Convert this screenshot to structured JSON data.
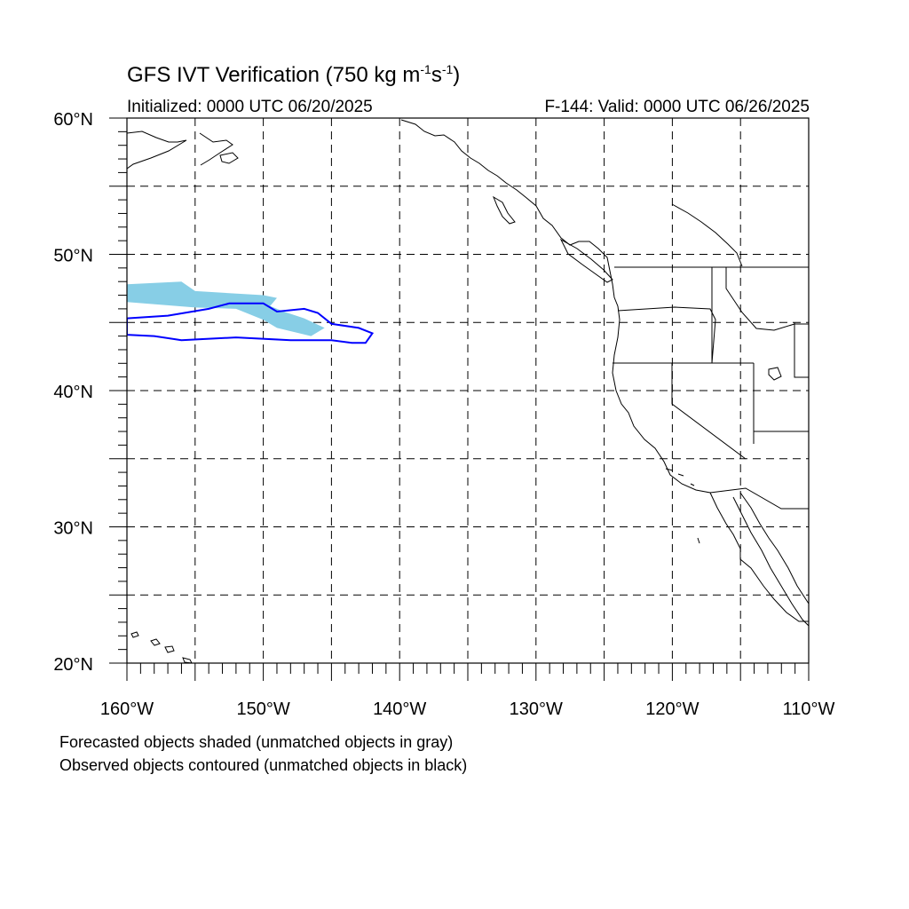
{
  "title": {
    "main": "GFS IVT Verification (750 kg m",
    "exp1": "-1",
    "mid": "s",
    "exp2": "-1",
    "end": ")"
  },
  "subtitle_left": "Initialized: 0000 UTC 06/20/2025",
  "subtitle_right": "F-144: Valid: 0000 UTC 06/26/2025",
  "notes": [
    "Forecasted objects shaded (unmatched objects in gray)",
    "Observed objects contoured (unmatched objects in black)"
  ],
  "map": {
    "lon_range": [
      -160,
      -110
    ],
    "lat_range": [
      20,
      60
    ],
    "lon_ticks": [
      {
        "value": -160,
        "label": "160°W"
      },
      {
        "value": -150,
        "label": "150°W"
      },
      {
        "value": -140,
        "label": "140°W"
      },
      {
        "value": -130,
        "label": "130°W"
      },
      {
        "value": -120,
        "label": "120°W"
      },
      {
        "value": -110,
        "label": "110°W"
      }
    ],
    "lat_ticks": [
      {
        "value": 60,
        "label": "60°N"
      },
      {
        "value": 50,
        "label": "50°N"
      },
      {
        "value": 40,
        "label": "40°N"
      },
      {
        "value": 30,
        "label": "30°N"
      },
      {
        "value": 20,
        "label": "20°N"
      }
    ],
    "grid_lons": [
      -155,
      -150,
      -145,
      -140,
      -135,
      -130,
      -125,
      -120,
      -115
    ],
    "grid_lats": [
      55,
      50,
      45,
      40,
      35,
      30,
      25
    ],
    "forecast_fill_color": "#87CEE6",
    "observed_contour_color": "#0000FF",
    "forecast_object": [
      [
        -160,
        47.8
      ],
      [
        -156,
        48.0
      ],
      [
        -155,
        47.3
      ],
      [
        -150,
        47.0
      ],
      [
        -149,
        46.8
      ],
      [
        -149.5,
        46.2
      ],
      [
        -148.5,
        45.8
      ],
      [
        -147,
        45.3
      ],
      [
        -145.5,
        44.6
      ],
      [
        -146.5,
        44.0
      ],
      [
        -149,
        44.6
      ],
      [
        -150,
        45.2
      ],
      [
        -152,
        46.0
      ],
      [
        -155,
        46.1
      ],
      [
        -160,
        46.5
      ]
    ],
    "observed_object": [
      [
        -160,
        45.3
      ],
      [
        -157,
        45.5
      ],
      [
        -154,
        46.0
      ],
      [
        -152.5,
        46.4
      ],
      [
        -150,
        46.4
      ],
      [
        -149,
        45.8
      ],
      [
        -147,
        46.0
      ],
      [
        -146,
        45.7
      ],
      [
        -145,
        44.9
      ],
      [
        -143,
        44.6
      ],
      [
        -142,
        44.2
      ],
      [
        -142.5,
        43.5
      ],
      [
        -143.5,
        43.5
      ],
      [
        -145,
        43.7
      ],
      [
        -148,
        43.7
      ],
      [
        -152,
        43.9
      ],
      [
        -156,
        43.7
      ],
      [
        -158,
        44.0
      ],
      [
        -160,
        44.1
      ]
    ]
  }
}
